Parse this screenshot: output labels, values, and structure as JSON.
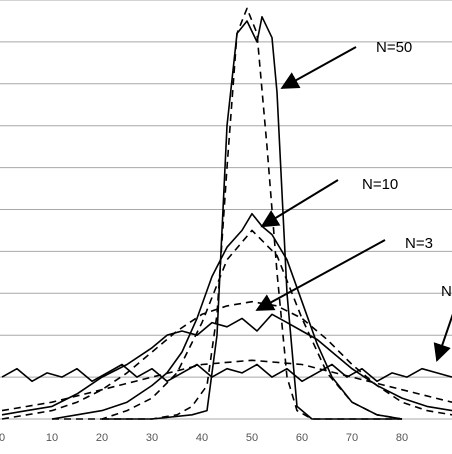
{
  "chart_data": {
    "type": "line",
    "title": "",
    "xlabel": "",
    "ylabel": "",
    "xlim": [
      0,
      90
    ],
    "ylim": [
      0,
      1
    ],
    "grid": true,
    "legend": "none",
    "xticks": [
      "0",
      "10",
      "20",
      "30",
      "40",
      "50",
      "60",
      "70",
      "80"
    ],
    "annotations": [
      {
        "label": "N=50",
        "point": [
          56,
          0.79
        ]
      },
      {
        "label": "N=10",
        "point": [
          52,
          0.46
        ]
      },
      {
        "label": "N=3",
        "point": [
          51,
          0.26
        ]
      },
      {
        "label": "N",
        "point": [
          87,
          0.14
        ]
      }
    ],
    "series": [
      {
        "style": "solid",
        "x": [
          0,
          3,
          6,
          9,
          12,
          15,
          18,
          21,
          24,
          27,
          30,
          33,
          36,
          39,
          42,
          45,
          48,
          51,
          54,
          57,
          60,
          63,
          66,
          69,
          72,
          75,
          78,
          81,
          84,
          87,
          90
        ],
        "y": [
          0.1,
          0.12,
          0.09,
          0.11,
          0.1,
          0.12,
          0.09,
          0.11,
          0.13,
          0.1,
          0.12,
          0.09,
          0.11,
          0.13,
          0.1,
          0.12,
          0.11,
          0.13,
          0.1,
          0.12,
          0.09,
          0.11,
          0.13,
          0.1,
          0.12,
          0.09,
          0.11,
          0.1,
          0.12,
          0.11,
          0.1
        ]
      },
      {
        "style": "dashed",
        "x": [
          0,
          10,
          20,
          30,
          40,
          50,
          60,
          70,
          80,
          90
        ],
        "y": [
          0.02,
          0.04,
          0.07,
          0.1,
          0.13,
          0.14,
          0.13,
          0.1,
          0.07,
          0.04
        ]
      },
      {
        "style": "solid",
        "x": [
          0,
          5,
          10,
          15,
          20,
          25,
          30,
          33,
          36,
          39,
          42,
          45,
          48,
          51,
          54,
          57,
          60,
          63,
          66,
          70,
          75,
          80,
          85,
          90
        ],
        "y": [
          0.01,
          0.02,
          0.03,
          0.06,
          0.1,
          0.13,
          0.17,
          0.2,
          0.21,
          0.2,
          0.23,
          0.22,
          0.24,
          0.21,
          0.25,
          0.23,
          0.21,
          0.19,
          0.16,
          0.12,
          0.08,
          0.05,
          0.03,
          0.02
        ]
      },
      {
        "style": "dashed",
        "x": [
          0,
          5,
          10,
          15,
          20,
          25,
          30,
          35,
          40,
          45,
          50,
          55,
          60,
          65,
          70,
          75,
          80,
          85,
          90
        ],
        "y": [
          0.0,
          0.01,
          0.02,
          0.04,
          0.07,
          0.11,
          0.16,
          0.21,
          0.25,
          0.27,
          0.28,
          0.27,
          0.24,
          0.19,
          0.13,
          0.08,
          0.04,
          0.02,
          0.01
        ]
      },
      {
        "style": "solid",
        "x": [
          10,
          15,
          20,
          25,
          30,
          33,
          36,
          39,
          42,
          45,
          48,
          50,
          52,
          54,
          57,
          60,
          63,
          66,
          70,
          75,
          80
        ],
        "y": [
          0.0,
          0.01,
          0.02,
          0.04,
          0.08,
          0.11,
          0.16,
          0.24,
          0.34,
          0.41,
          0.45,
          0.49,
          0.46,
          0.44,
          0.38,
          0.28,
          0.18,
          0.1,
          0.04,
          0.01,
          0.0
        ]
      },
      {
        "style": "dashed",
        "x": [
          10,
          20,
          25,
          30,
          35,
          40,
          45,
          50,
          55,
          60,
          65,
          70,
          75,
          80
        ],
        "y": [
          0.0,
          0.0,
          0.02,
          0.05,
          0.11,
          0.23,
          0.38,
          0.45,
          0.39,
          0.24,
          0.11,
          0.04,
          0.01,
          0.0
        ]
      },
      {
        "style": "solid",
        "x": [
          20,
          30,
          38,
          41,
          43,
          45,
          47,
          49,
          51,
          52,
          54,
          55,
          57,
          59,
          62,
          70,
          80
        ],
        "y": [
          0.0,
          0.0,
          0.01,
          0.02,
          0.2,
          0.7,
          0.92,
          0.95,
          0.9,
          0.96,
          0.91,
          0.78,
          0.3,
          0.03,
          0.0,
          0.0,
          0.0
        ]
      },
      {
        "style": "dashed",
        "x": [
          20,
          30,
          35,
          38,
          41,
          43,
          45,
          47,
          49,
          51,
          53,
          55,
          57,
          59,
          62,
          70,
          80
        ],
        "y": [
          0.0,
          0.0,
          0.01,
          0.03,
          0.08,
          0.25,
          0.6,
          0.92,
          0.98,
          0.92,
          0.65,
          0.35,
          0.1,
          0.02,
          0.0,
          0.0,
          0.0
        ]
      }
    ]
  }
}
